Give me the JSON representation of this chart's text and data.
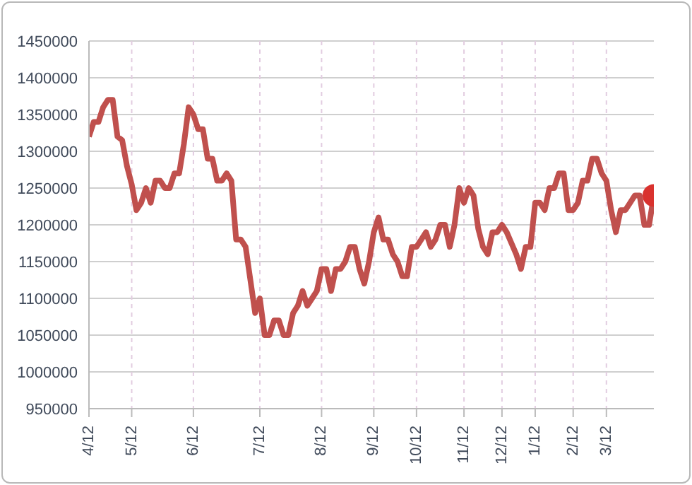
{
  "chart_data": {
    "type": "line",
    "categories": [
      "4/12",
      null,
      null,
      null,
      null,
      null,
      null,
      null,
      null,
      "5/12",
      null,
      null,
      null,
      null,
      null,
      null,
      null,
      null,
      null,
      null,
      null,
      null,
      "6/12",
      null,
      null,
      null,
      null,
      null,
      null,
      null,
      null,
      null,
      null,
      null,
      null,
      null,
      "7/12",
      null,
      null,
      null,
      null,
      null,
      null,
      null,
      null,
      null,
      null,
      null,
      null,
      "8/12",
      null,
      null,
      null,
      null,
      null,
      null,
      null,
      null,
      null,
      null,
      "9/12",
      null,
      null,
      null,
      null,
      null,
      null,
      null,
      null,
      "10/12",
      null,
      null,
      null,
      null,
      null,
      null,
      null,
      null,
      null,
      "11/12",
      null,
      null,
      null,
      null,
      null,
      null,
      null,
      "12/12",
      null,
      null,
      null,
      null,
      null,
      null,
      "1/12",
      null,
      null,
      null,
      null,
      null,
      null,
      null,
      "2/12",
      null,
      null,
      null,
      null,
      null,
      null,
      "3/12",
      null,
      null,
      null,
      null,
      null,
      null,
      null,
      null,
      null,
      null
    ],
    "ylim": [
      950000,
      1450000
    ],
    "yticks": [
      950000,
      1000000,
      1050000,
      1100000,
      1150000,
      1200000,
      1250000,
      1300000,
      1350000,
      1400000,
      1450000
    ],
    "grid": true,
    "line_style": "solid",
    "series": [
      {
        "color": "#c0504d",
        "values": [
          1320000,
          1340000,
          1340000,
          1360000,
          1370000,
          1370000,
          1320000,
          1315000,
          1280000,
          1255000,
          1220000,
          1230000,
          1250000,
          1230000,
          1260000,
          1260000,
          1250000,
          1250000,
          1270000,
          1270000,
          1310000,
          1360000,
          1350000,
          1330000,
          1330000,
          1290000,
          1290000,
          1260000,
          1260000,
          1270000,
          1260000,
          1180000,
          1180000,
          1170000,
          1125000,
          1080000,
          1100000,
          1050000,
          1050000,
          1070000,
          1070000,
          1050000,
          1050000,
          1080000,
          1090000,
          1110000,
          1090000,
          1100000,
          1110000,
          1140000,
          1140000,
          1110000,
          1140000,
          1140000,
          1150000,
          1170000,
          1170000,
          1140000,
          1120000,
          1150000,
          1190000,
          1210000,
          1180000,
          1180000,
          1160000,
          1150000,
          1130000,
          1130000,
          1170000,
          1170000,
          1180000,
          1190000,
          1170000,
          1180000,
          1200000,
          1200000,
          1170000,
          1200000,
          1250000,
          1230000,
          1250000,
          1240000,
          1195000,
          1170000,
          1160000,
          1190000,
          1190000,
          1200000,
          1190000,
          1175000,
          1160000,
          1140000,
          1170000,
          1170000,
          1230000,
          1230000,
          1220000,
          1250000,
          1250000,
          1270000,
          1270000,
          1220000,
          1220000,
          1230000,
          1260000,
          1260000,
          1290000,
          1290000,
          1270000,
          1260000,
          1220000,
          1190000,
          1220000,
          1220000,
          1230000,
          1240000,
          1240000,
          1200000,
          1200000,
          1240000
        ]
      },
      {
        "type": "scatter",
        "color": "#d9322e",
        "marker": "circle",
        "values": [
          null,
          null,
          null,
          null,
          null,
          null,
          null,
          null,
          null,
          null,
          null,
          null,
          null,
          null,
          null,
          null,
          null,
          null,
          null,
          null,
          null,
          null,
          null,
          null,
          null,
          null,
          null,
          null,
          null,
          null,
          null,
          null,
          null,
          null,
          null,
          null,
          null,
          null,
          null,
          null,
          null,
          null,
          null,
          null,
          null,
          null,
          null,
          null,
          null,
          null,
          null,
          null,
          null,
          null,
          null,
          null,
          null,
          null,
          null,
          null,
          null,
          null,
          null,
          null,
          null,
          null,
          null,
          null,
          null,
          null,
          null,
          null,
          null,
          null,
          null,
          null,
          null,
          null,
          null,
          null,
          null,
          null,
          null,
          null,
          null,
          null,
          null,
          null,
          null,
          null,
          null,
          null,
          null,
          null,
          null,
          null,
          null,
          null,
          null,
          null,
          null,
          null,
          null,
          null,
          null,
          null,
          null,
          null,
          null,
          null,
          null,
          null,
          null,
          null,
          null,
          null,
          null,
          null,
          null,
          1240000
        ]
      }
    ]
  }
}
